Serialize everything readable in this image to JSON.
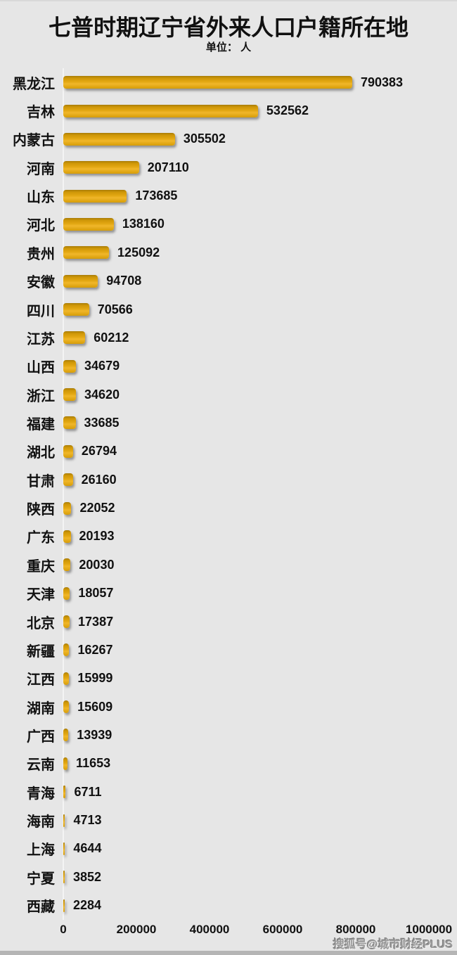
{
  "header": {
    "title": "七普时期辽宁省外来人口户籍所在地",
    "subtitle": "单位： 人"
  },
  "watermark": "搜狐号@城市财经PLUS",
  "colors": {
    "background": "#e6e6e6",
    "bar_top": "#a87c06",
    "bar_main": "#e2a712",
    "bar_highlight": "#f0b62a",
    "text": "#111111",
    "axis_line": "#f4f4f4",
    "watermark": "#9a9a9a",
    "bottom_strip": "#b5b5b5"
  },
  "chart_data": {
    "type": "bar",
    "orientation": "horizontal",
    "title": "七普时期辽宁省外来人口户籍所在地",
    "unit_label": "单位： 人",
    "categories": [
      "黑龙江",
      "吉林",
      "内蒙古",
      "河南",
      "山东",
      "河北",
      "贵州",
      "安徽",
      "四川",
      "江苏",
      "山西",
      "浙江",
      "福建",
      "湖北",
      "甘肃",
      "陕西",
      "广东",
      "重庆",
      "天津",
      "北京",
      "新疆",
      "江西",
      "湖南",
      "广西",
      "云南",
      "青海",
      "海南",
      "上海",
      "宁夏",
      "西藏"
    ],
    "values": [
      790383,
      532562,
      305502,
      207110,
      173685,
      138160,
      125092,
      94708,
      70566,
      60212,
      34679,
      34620,
      33685,
      26794,
      26160,
      22052,
      20193,
      20030,
      18057,
      17387,
      16267,
      15999,
      15609,
      13939,
      11653,
      6711,
      4713,
      4644,
      3852,
      2284
    ],
    "xlim": [
      0,
      1000000
    ],
    "x_ticks": [
      0,
      200000,
      400000,
      600000,
      800000,
      1000000
    ],
    "x_tick_labels": [
      "0",
      "200000",
      "400000",
      "600000",
      "800000",
      "1000000"
    ],
    "grid": false,
    "legend": false,
    "bar_color": "#e2a712",
    "value_labels": true
  }
}
